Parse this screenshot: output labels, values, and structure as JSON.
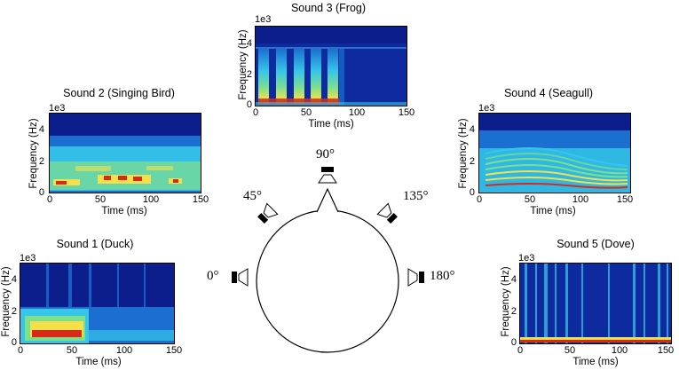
{
  "diagram": {
    "angles": {
      "a0": "0°",
      "a45": "45°",
      "a90": "90°",
      "a135": "135°",
      "a180": "180°"
    }
  },
  "axes": {
    "xlabel": "Time (ms)",
    "ylabel": "Frequency (Hz)",
    "exponent": "1e3",
    "xticks": [
      "0",
      "50",
      "100",
      "150"
    ],
    "yticks": [
      "0",
      "2",
      "4"
    ]
  },
  "chart_data": [
    {
      "type": "heatmap",
      "title": "Sound 3 (Frog)",
      "xlabel": "Time (ms)",
      "ylabel": "Frequency (Hz)",
      "xlim": [
        0,
        150
      ],
      "ylim": [
        0,
        5000
      ]
    },
    {
      "type": "heatmap",
      "title": "Sound 2 (Singing Bird)",
      "xlabel": "Time (ms)",
      "ylabel": "Frequency (Hz)",
      "xlim": [
        0,
        150
      ],
      "ylim": [
        0,
        5000
      ]
    },
    {
      "type": "heatmap",
      "title": "Sound 4 (Seagull)",
      "xlabel": "Time (ms)",
      "ylabel": "Frequency (Hz)",
      "xlim": [
        0,
        150
      ],
      "ylim": [
        0,
        5000
      ]
    },
    {
      "type": "heatmap",
      "title": "Sound 1 (Duck)",
      "xlabel": "Time (ms)",
      "ylabel": "Frequency (Hz)",
      "xlim": [
        0,
        150
      ],
      "ylim": [
        0,
        5000
      ]
    },
    {
      "type": "heatmap",
      "title": "Sound 5 (Dove)",
      "xlabel": "Time (ms)",
      "ylabel": "Frequency (Hz)",
      "xlim": [
        0,
        150
      ],
      "ylim": [
        0,
        5000
      ]
    }
  ],
  "colors": {
    "low": "#0b1e8c",
    "mid": "#1a6fd0",
    "cyan": "#35c6e8",
    "yellow": "#f3e04a",
    "red": "#d62a1a"
  }
}
